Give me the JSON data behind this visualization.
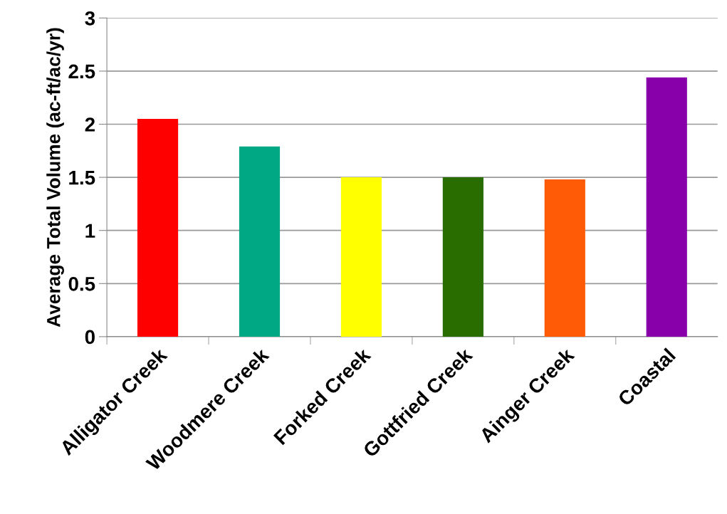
{
  "chart_data": {
    "type": "bar",
    "ylabel": "Average Total Volume (ac-ft/ac/yr)",
    "categories": [
      "Alligator Creek",
      "Woodmere Creek",
      "Forked Creek",
      "Gottfried Creek",
      "Ainger Creek",
      "Coastal"
    ],
    "values": [
      2.05,
      1.79,
      1.5,
      1.5,
      1.48,
      2.44
    ],
    "colors": [
      "#ff0000",
      "#00a884",
      "#ffff00",
      "#296d00",
      "#ff5a05",
      "#8800aa"
    ],
    "ylim": [
      0,
      3
    ],
    "yticks": [
      0,
      0.5,
      1,
      1.5,
      2,
      2.5,
      3
    ],
    "grid": "y",
    "legend": false
  }
}
